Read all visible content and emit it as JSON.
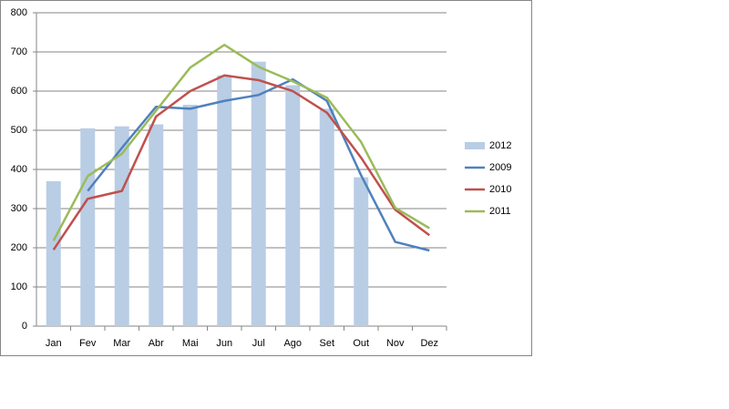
{
  "chart_data": {
    "type": "combo",
    "categories": [
      "Jan",
      "Fev",
      "Mar",
      "Abr",
      "Mai",
      "Jun",
      "Jul",
      "Ago",
      "Set",
      "Out",
      "Nov",
      "Dez"
    ],
    "series": [
      {
        "name": "2012",
        "type": "bar",
        "color": "#b9cde5",
        "values": [
          370,
          505,
          510,
          515,
          565,
          640,
          675,
          615,
          555,
          380,
          null,
          null
        ]
      },
      {
        "name": "2009",
        "type": "line",
        "color": "#4f81bd",
        "values": [
          null,
          345,
          455,
          560,
          555,
          575,
          590,
          630,
          575,
          385,
          215,
          193
        ]
      },
      {
        "name": "2010",
        "type": "line",
        "color": "#c0504d",
        "values": [
          195,
          325,
          345,
          535,
          600,
          640,
          628,
          600,
          545,
          430,
          297,
          232
        ]
      },
      {
        "name": "2011",
        "type": "line",
        "color": "#9bbb59",
        "values": [
          218,
          383,
          440,
          550,
          660,
          718,
          662,
          625,
          583,
          470,
          302,
          250
        ]
      }
    ],
    "ylim": [
      0,
      800
    ],
    "yticks": [
      0,
      100,
      200,
      300,
      400,
      500,
      600,
      700,
      800
    ],
    "grid": true,
    "legend": "right"
  }
}
